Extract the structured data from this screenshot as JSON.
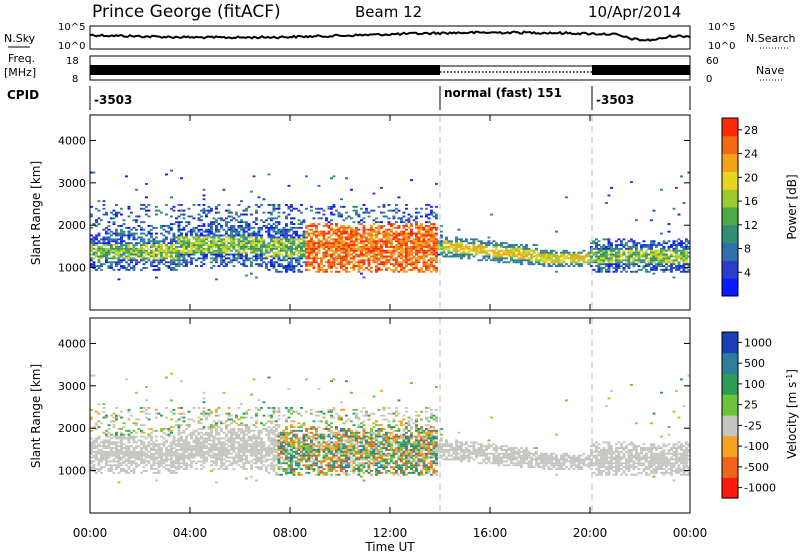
{
  "header": {
    "station": "Prince George (fitACF)",
    "beam": "Beam 12",
    "date": "10/Apr/2014"
  },
  "left_labels": {
    "nsky": "N.Sky",
    "freq": "Freq.",
    "mhz": "[MHz]",
    "cpid": "CPID"
  },
  "right_labels": {
    "nsearch": "N.Search",
    "nave": "Nave"
  },
  "chart_data": [
    {
      "type": "line",
      "panel": "noise",
      "ylabel": "N.Sky",
      "y_ticks": [
        "10^5",
        "10^0"
      ],
      "y2_ticks": [
        "10^5",
        "10^0"
      ],
      "y2label": "N.Search",
      "x_range": [
        "00:00",
        "00:00"
      ]
    },
    {
      "type": "line",
      "panel": "frequency",
      "ylabel": "Freq. [MHz]",
      "y_ticks": [
        "18",
        "8"
      ],
      "y2_ticks": [
        "60",
        "0"
      ],
      "y2label": "Nave"
    },
    {
      "type": "table",
      "panel": "cpid",
      "segments": [
        {
          "start": "00:00",
          "label": "-3503"
        },
        {
          "start": "14:00",
          "label": "normal (fast) 151"
        },
        {
          "start": "20:00",
          "label": "-3503"
        }
      ]
    },
    {
      "type": "heatmap",
      "panel": "power",
      "ylabel": "Slant Range [km]",
      "y_ticks": [
        1000,
        2000,
        3000,
        4000
      ],
      "ylim": [
        0,
        4600
      ],
      "colorbar_label": "Power [dB]",
      "colorbar_ticks": [
        4,
        8,
        12,
        16,
        20,
        24,
        28
      ],
      "colorbar_range": [
        0,
        30
      ]
    },
    {
      "type": "heatmap",
      "panel": "velocity",
      "ylabel": "Slant Range [km]",
      "y_ticks": [
        1000,
        2000,
        3000,
        4000
      ],
      "ylim": [
        0,
        4600
      ],
      "colorbar_label": "Velocity [m s-1]",
      "colorbar_ticks": [
        1000,
        500,
        100,
        25,
        -25,
        -100,
        -500,
        -1000
      ]
    }
  ],
  "x_axis": {
    "ticks": [
      "00:00",
      "04:00",
      "08:00",
      "12:00",
      "16:00",
      "20:00",
      "00:00"
    ],
    "label": "Time UT"
  }
}
